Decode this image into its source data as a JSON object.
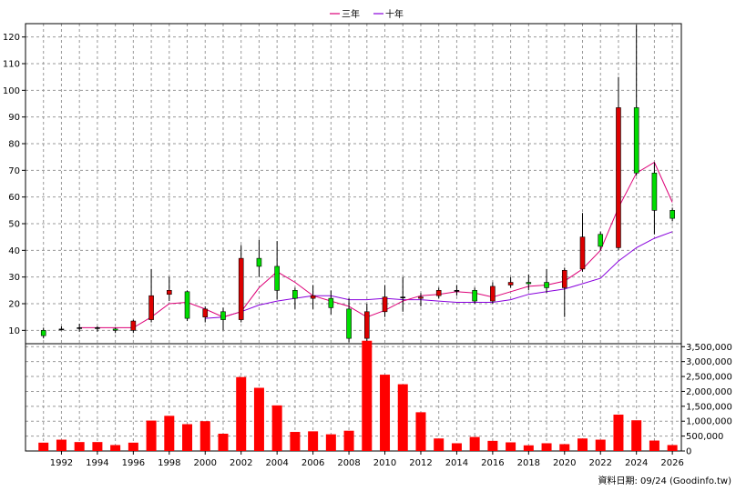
{
  "chart_data": {
    "type": "candlestick+bar",
    "legend": [
      {
        "label": "三年",
        "color": "#dd0077"
      },
      {
        "label": "十年",
        "color": "#8800dd"
      }
    ],
    "legend_position": "top-center",
    "grid": true,
    "price_axis": {
      "ylim": [
        5,
        125
      ],
      "ticks": [
        10,
        20,
        30,
        40,
        50,
        60,
        70,
        80,
        90,
        100,
        110,
        120
      ],
      "side": "left"
    },
    "volume_axis": {
      "ylim": [
        0,
        3600000
      ],
      "ticks": [
        0,
        500000,
        1000000,
        1500000,
        2000000,
        2500000,
        3000000,
        3500000
      ],
      "tick_labels": [
        "0",
        "500,000",
        "1,000,000",
        "1,500,000",
        "2,000,000",
        "2,500,000",
        "3,000,000",
        "3,500,000"
      ],
      "side": "right"
    },
    "x_axis": {
      "xlim": [
        1990,
        2026.5
      ],
      "tick_labels": [
        "1992",
        "1994",
        "1996",
        "1998",
        "2000",
        "2002",
        "2004",
        "2006",
        "2008",
        "2010",
        "2012",
        "2014",
        "2016",
        "2018",
        "2020",
        "2022",
        "2024",
        "2026"
      ]
    },
    "candles": [
      {
        "year": 1991,
        "open": 10,
        "close": 8,
        "high": 11,
        "low": 7
      },
      {
        "year": 1992,
        "open": 10.5,
        "close": 10.5,
        "high": 11.5,
        "low": 10
      },
      {
        "year": 1993,
        "open": 11,
        "close": 11,
        "high": 12.5,
        "low": 9.5
      },
      {
        "year": 1994,
        "open": 11,
        "close": 11,
        "high": 11.5,
        "low": 9.5
      },
      {
        "year": 1995,
        "open": 10.5,
        "close": 10,
        "high": 11,
        "low": 9
      },
      {
        "year": 1996,
        "open": 10,
        "close": 13.5,
        "high": 14,
        "low": 9
      },
      {
        "year": 1997,
        "open": 14,
        "close": 23,
        "high": 33,
        "low": 13
      },
      {
        "year": 1998,
        "open": 23.5,
        "close": 25,
        "high": 30,
        "low": 21
      },
      {
        "year": 1999,
        "open": 24.5,
        "close": 14.5,
        "high": 25,
        "low": 13.5
      },
      {
        "year": 2000,
        "open": 15,
        "close": 18,
        "high": 19,
        "low": 13
      },
      {
        "year": 2001,
        "open": 17,
        "close": 14,
        "high": 18.5,
        "low": 10
      },
      {
        "year": 2002,
        "open": 14,
        "close": 37,
        "high": 42,
        "low": 13
      },
      {
        "year": 2003,
        "open": 37,
        "close": 34,
        "high": 44,
        "low": 30
      },
      {
        "year": 2004,
        "open": 34,
        "close": 25,
        "high": 43.5,
        "low": 21.5
      },
      {
        "year": 2005,
        "open": 25,
        "close": 22,
        "high": 26,
        "low": 18
      },
      {
        "year": 2006,
        "open": 22,
        "close": 23,
        "high": 27,
        "low": 18
      },
      {
        "year": 2007,
        "open": 22,
        "close": 18.5,
        "high": 25,
        "low": 16
      },
      {
        "year": 2008,
        "open": 18,
        "close": 7,
        "high": 22,
        "low": 5.5
      },
      {
        "year": 2009,
        "open": 7,
        "close": 17,
        "high": 20,
        "low": 6
      },
      {
        "year": 2010,
        "open": 17,
        "close": 22.5,
        "high": 27,
        "low": 15
      },
      {
        "year": 2011,
        "open": 22.5,
        "close": 22.5,
        "high": 30,
        "low": 17
      },
      {
        "year": 2012,
        "open": 22,
        "close": 22.5,
        "high": 24,
        "low": 19
      },
      {
        "year": 2013,
        "open": 23,
        "close": 25,
        "high": 26,
        "low": 22
      },
      {
        "year": 2014,
        "open": 25,
        "close": 25,
        "high": 27,
        "low": 23
      },
      {
        "year": 2015,
        "open": 25,
        "close": 21,
        "high": 26,
        "low": 20
      },
      {
        "year": 2016,
        "open": 21,
        "close": 26.5,
        "high": 28,
        "low": 20
      },
      {
        "year": 2017,
        "open": 27,
        "close": 28,
        "high": 30,
        "low": 26
      },
      {
        "year": 2018,
        "open": 28,
        "close": 27.5,
        "high": 31,
        "low": 25
      },
      {
        "year": 2019,
        "open": 28,
        "close": 26,
        "high": 33,
        "low": 24
      },
      {
        "year": 2020,
        "open": 26,
        "close": 32.5,
        "high": 33.5,
        "low": 15
      },
      {
        "year": 2021,
        "open": 33,
        "close": 45,
        "high": 54,
        "low": 32
      },
      {
        "year": 2022,
        "open": 46,
        "close": 41.5,
        "high": 47,
        "low": 40
      },
      {
        "year": 2023,
        "open": 41,
        "close": 93.5,
        "high": 105,
        "low": 40
      },
      {
        "year": 2024,
        "open": 93.5,
        "close": 69,
        "high": 124.5,
        "low": 68
      },
      {
        "year": 2025,
        "open": 69,
        "close": 55,
        "high": 73,
        "low": 46
      },
      {
        "year": 2026,
        "open": 55,
        "close": 52,
        "high": 56,
        "low": 51
      }
    ],
    "ma_three_year": [
      [
        1993,
        11
      ],
      [
        1995,
        11
      ],
      [
        1996,
        11
      ],
      [
        1997,
        15
      ],
      [
        1998,
        20
      ],
      [
        1999,
        20.5
      ],
      [
        2000,
        18
      ],
      [
        2001,
        15
      ],
      [
        2002,
        17
      ],
      [
        2003,
        26
      ],
      [
        2004,
        32
      ],
      [
        2005,
        28
      ],
      [
        2006,
        23
      ],
      [
        2007,
        21
      ],
      [
        2008,
        19
      ],
      [
        2009,
        15
      ],
      [
        2010,
        17.5
      ],
      [
        2011,
        21
      ],
      [
        2012,
        23
      ],
      [
        2013,
        23.5
      ],
      [
        2014,
        24.5
      ],
      [
        2015,
        24
      ],
      [
        2016,
        22.5
      ],
      [
        2017,
        24.5
      ],
      [
        2018,
        26.5
      ],
      [
        2019,
        27
      ],
      [
        2020,
        28.5
      ],
      [
        2021,
        33
      ],
      [
        2022,
        40
      ],
      [
        2023,
        56
      ],
      [
        2024,
        69
      ],
      [
        2025,
        73
      ],
      [
        2026,
        58
      ]
    ],
    "ma_ten_year": [
      [
        2000,
        14.5
      ],
      [
        2001,
        15
      ],
      [
        2002,
        17
      ],
      [
        2003,
        19.5
      ],
      [
        2004,
        21
      ],
      [
        2005,
        22
      ],
      [
        2006,
        23
      ],
      [
        2007,
        23
      ],
      [
        2008,
        21.5
      ],
      [
        2009,
        21.5
      ],
      [
        2010,
        22
      ],
      [
        2011,
        21.5
      ],
      [
        2012,
        21.5
      ],
      [
        2013,
        21
      ],
      [
        2014,
        20.5
      ],
      [
        2015,
        20.5
      ],
      [
        2016,
        20.5
      ],
      [
        2017,
        21.5
      ],
      [
        2018,
        23.5
      ],
      [
        2019,
        24.5
      ],
      [
        2020,
        25.5
      ],
      [
        2021,
        27.5
      ],
      [
        2022,
        29.5
      ],
      [
        2023,
        36
      ],
      [
        2024,
        41
      ],
      [
        2025,
        44.5
      ],
      [
        2026,
        47
      ]
    ],
    "volume": [
      {
        "year": 1991,
        "value": 280000
      },
      {
        "year": 1992,
        "value": 380000
      },
      {
        "year": 1993,
        "value": 300000
      },
      {
        "year": 1994,
        "value": 300000
      },
      {
        "year": 1995,
        "value": 200000
      },
      {
        "year": 1996,
        "value": 280000
      },
      {
        "year": 1997,
        "value": 1020000
      },
      {
        "year": 1998,
        "value": 1180000
      },
      {
        "year": 1999,
        "value": 900000
      },
      {
        "year": 2000,
        "value": 1000000
      },
      {
        "year": 2001,
        "value": 580000
      },
      {
        "year": 2002,
        "value": 2480000
      },
      {
        "year": 2003,
        "value": 2120000
      },
      {
        "year": 2004,
        "value": 1530000
      },
      {
        "year": 2005,
        "value": 640000
      },
      {
        "year": 2006,
        "value": 660000
      },
      {
        "year": 2007,
        "value": 560000
      },
      {
        "year": 2008,
        "value": 680000
      },
      {
        "year": 2009,
        "value": 3700000
      },
      {
        "year": 2010,
        "value": 2560000
      },
      {
        "year": 2011,
        "value": 2240000
      },
      {
        "year": 2012,
        "value": 1300000
      },
      {
        "year": 2013,
        "value": 420000
      },
      {
        "year": 2014,
        "value": 260000
      },
      {
        "year": 2015,
        "value": 470000
      },
      {
        "year": 2016,
        "value": 340000
      },
      {
        "year": 2017,
        "value": 290000
      },
      {
        "year": 2018,
        "value": 190000
      },
      {
        "year": 2019,
        "value": 260000
      },
      {
        "year": 2020,
        "value": 230000
      },
      {
        "year": 2021,
        "value": 420000
      },
      {
        "year": 2022,
        "value": 380000
      },
      {
        "year": 2023,
        "value": 1220000
      },
      {
        "year": 2024,
        "value": 1030000
      },
      {
        "year": 2025,
        "value": 350000
      },
      {
        "year": 2026,
        "value": 200000
      }
    ],
    "colors": {
      "up": "#dd0000",
      "down": "#00dd00",
      "volume": "#ff0000",
      "grid": "#999999",
      "wick": "#000000"
    }
  },
  "footer": {
    "source_text": "資料日期: 09/24 (Goodinfo.tw)"
  }
}
